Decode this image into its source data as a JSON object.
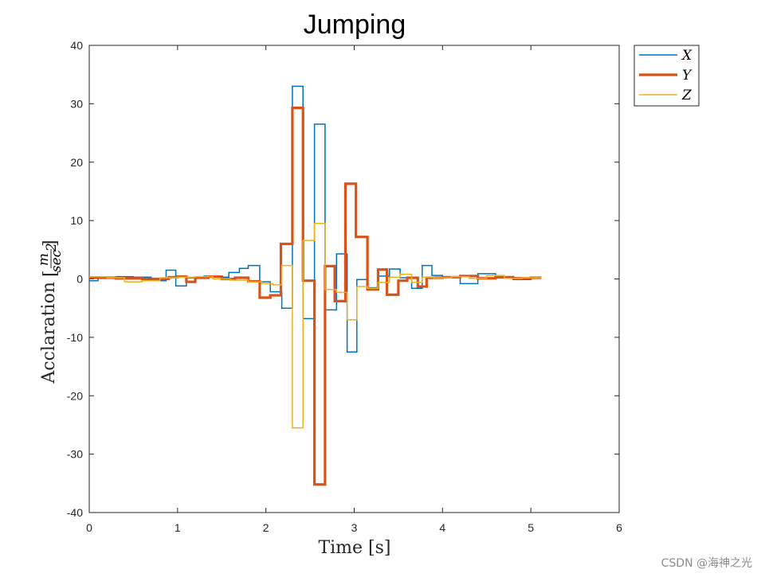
{
  "chart_data": {
    "type": "line",
    "title": "Jumping",
    "xlabel": "Time [s]",
    "ylabel": "Acceleration [m/sec²]",
    "ylabel_main": "Acclaration ",
    "ylabel_frac_num": "m",
    "ylabel_frac_den": "sec",
    "ylabel_frac_exp": "2",
    "xlim": [
      0,
      6
    ],
    "ylim": [
      -40,
      40
    ],
    "xticks": [
      0,
      1,
      2,
      3,
      4,
      5,
      6
    ],
    "yticks": [
      -40,
      -30,
      -20,
      -10,
      0,
      10,
      20,
      30,
      40
    ],
    "legend_position": "outside-top-right",
    "step": true,
    "series": [
      {
        "name": "X",
        "color": "#0072BD",
        "width": 1.5,
        "x": [
          0,
          0.1,
          0.3,
          0.5,
          0.7,
          0.87,
          0.98,
          1.1,
          1.3,
          1.5,
          1.58,
          1.7,
          1.8,
          1.93,
          2.05,
          2.18,
          2.3,
          2.42,
          2.55,
          2.67,
          2.8,
          2.92,
          3.03,
          3.15,
          3.27,
          3.4,
          3.52,
          3.65,
          3.77,
          3.88,
          4.0,
          4.2,
          4.4,
          4.6,
          4.8,
          5.0,
          5.12
        ],
        "y": [
          -0.3,
          0.2,
          0.4,
          0.3,
          -0.3,
          1.5,
          -1.2,
          0.2,
          0.5,
          0.3,
          1.1,
          1.8,
          2.3,
          -0.5,
          -2.2,
          -5.0,
          33.0,
          -6.8,
          26.5,
          -5.3,
          4.3,
          -12.5,
          -0.1,
          -1.5,
          0.5,
          1.7,
          0.2,
          -1.6,
          2.3,
          0.6,
          0.3,
          -0.8,
          0.9,
          0.2,
          -0.1,
          0.2,
          0.2
        ]
      },
      {
        "name": "Y",
        "color": "#D95319",
        "width": 3.2,
        "x": [
          0,
          0.3,
          0.6,
          0.9,
          1.0,
          1.1,
          1.2,
          1.35,
          1.5,
          1.65,
          1.8,
          1.93,
          2.05,
          2.17,
          2.3,
          2.42,
          2.55,
          2.67,
          2.78,
          2.9,
          3.02,
          3.15,
          3.27,
          3.37,
          3.5,
          3.6,
          3.72,
          3.82,
          4.0,
          4.2,
          4.4,
          4.6,
          4.8,
          5.0,
          5.12
        ],
        "y": [
          0.2,
          0.1,
          0.0,
          0.3,
          0.4,
          -0.5,
          0.2,
          0.4,
          0.0,
          0.2,
          -0.4,
          -3.2,
          -2.8,
          6.0,
          29.3,
          -0.3,
          -35.2,
          2.2,
          -3.8,
          16.3,
          7.2,
          -1.8,
          1.6,
          -2.7,
          -0.3,
          0.2,
          -1.3,
          0.2,
          0.3,
          0.5,
          0.1,
          0.3,
          0.1,
          0.2,
          0.2
        ]
      },
      {
        "name": "Z",
        "color": "#EDB120",
        "width": 1.5,
        "x": [
          0,
          0.2,
          0.4,
          0.6,
          0.8,
          1.0,
          1.2,
          1.4,
          1.6,
          1.8,
          1.95,
          2.08,
          2.18,
          2.3,
          2.42,
          2.55,
          2.67,
          2.8,
          2.92,
          3.03,
          3.15,
          3.27,
          3.4,
          3.52,
          3.65,
          3.77,
          3.9,
          4.1,
          4.3,
          4.5,
          4.7,
          4.9,
          5.12
        ],
        "y": [
          0.4,
          0.2,
          -0.5,
          -0.3,
          0.2,
          0.3,
          0.4,
          0.0,
          -0.2,
          -0.5,
          -0.8,
          -1.0,
          2.3,
          -25.5,
          6.6,
          9.5,
          -1.8,
          -2.3,
          -7.0,
          -1.3,
          -1.6,
          -0.6,
          0.3,
          0.8,
          -0.6,
          0.3,
          0.2,
          0.4,
          0.1,
          0.6,
          0.1,
          0.2,
          0.2
        ]
      }
    ]
  },
  "watermark": "CSDN @海神之光"
}
